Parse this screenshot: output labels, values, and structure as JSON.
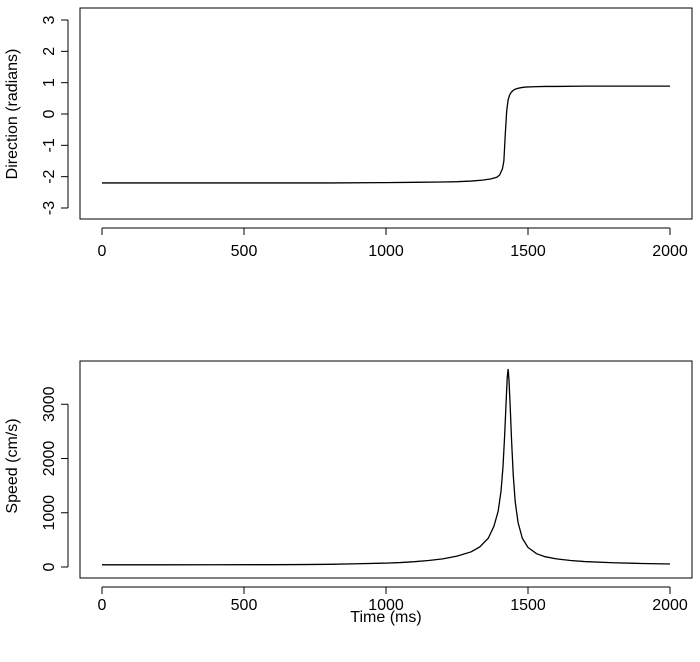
{
  "chart_data": [
    {
      "type": "line",
      "title": "",
      "xlabel": "",
      "ylabel": "Direction (radians)",
      "xlim": [
        0,
        2000
      ],
      "ylim": [
        -3,
        3
      ],
      "x_ticks": [
        "0",
        "500",
        "1000",
        "1500",
        "2000"
      ],
      "y_ticks": [
        "-3",
        "-2",
        "-1",
        "0",
        "1",
        "2",
        "3"
      ],
      "grid": false,
      "series": [
        {
          "x": [
            0,
            200,
            400,
            600,
            800,
            1000,
            1100,
            1200,
            1250,
            1300,
            1340,
            1370,
            1390,
            1400,
            1410,
            1415,
            1420,
            1425,
            1430,
            1435,
            1440,
            1445,
            1450,
            1460,
            1475,
            1490,
            1520,
            1560,
            1600,
            1700,
            1800,
            1900,
            2000
          ],
          "values": [
            -2.2,
            -2.2,
            -2.2,
            -2.2,
            -2.2,
            -2.19,
            -2.18,
            -2.17,
            -2.16,
            -2.14,
            -2.11,
            -2.07,
            -2.02,
            -1.95,
            -1.75,
            -1.5,
            -0.65,
            0.1,
            0.45,
            0.6,
            0.68,
            0.73,
            0.77,
            0.81,
            0.84,
            0.86,
            0.87,
            0.88,
            0.88,
            0.89,
            0.89,
            0.89,
            0.89
          ]
        }
      ]
    },
    {
      "type": "line",
      "title": "",
      "xlabel": "Time (ms)",
      "ylabel": "Speed (cm/s)",
      "xlim": [
        0,
        2000
      ],
      "ylim": [
        0,
        3650
      ],
      "x_ticks": [
        "0",
        "500",
        "1000",
        "1500",
        "2000"
      ],
      "y_ticks": [
        "0",
        "1000",
        "2000",
        "3000"
      ],
      "grid": false,
      "series": [
        {
          "x": [
            0,
            200,
            400,
            600,
            700,
            800,
            900,
            1000,
            1050,
            1100,
            1150,
            1200,
            1250,
            1300,
            1330,
            1360,
            1380,
            1395,
            1405,
            1412,
            1418,
            1423,
            1427,
            1430,
            1433,
            1437,
            1442,
            1448,
            1455,
            1465,
            1480,
            1500,
            1530,
            1560,
            1600,
            1650,
            1700,
            1800,
            1900,
            2000
          ],
          "values": [
            40,
            40,
            41,
            43,
            45,
            50,
            60,
            72,
            82,
            98,
            120,
            150,
            200,
            280,
            370,
            530,
            750,
            1030,
            1400,
            1850,
            2450,
            3050,
            3500,
            3650,
            3450,
            3000,
            2350,
            1700,
            1200,
            820,
            530,
            360,
            245,
            190,
            150,
            120,
            100,
            78,
            65,
            55
          ]
        }
      ]
    }
  ]
}
